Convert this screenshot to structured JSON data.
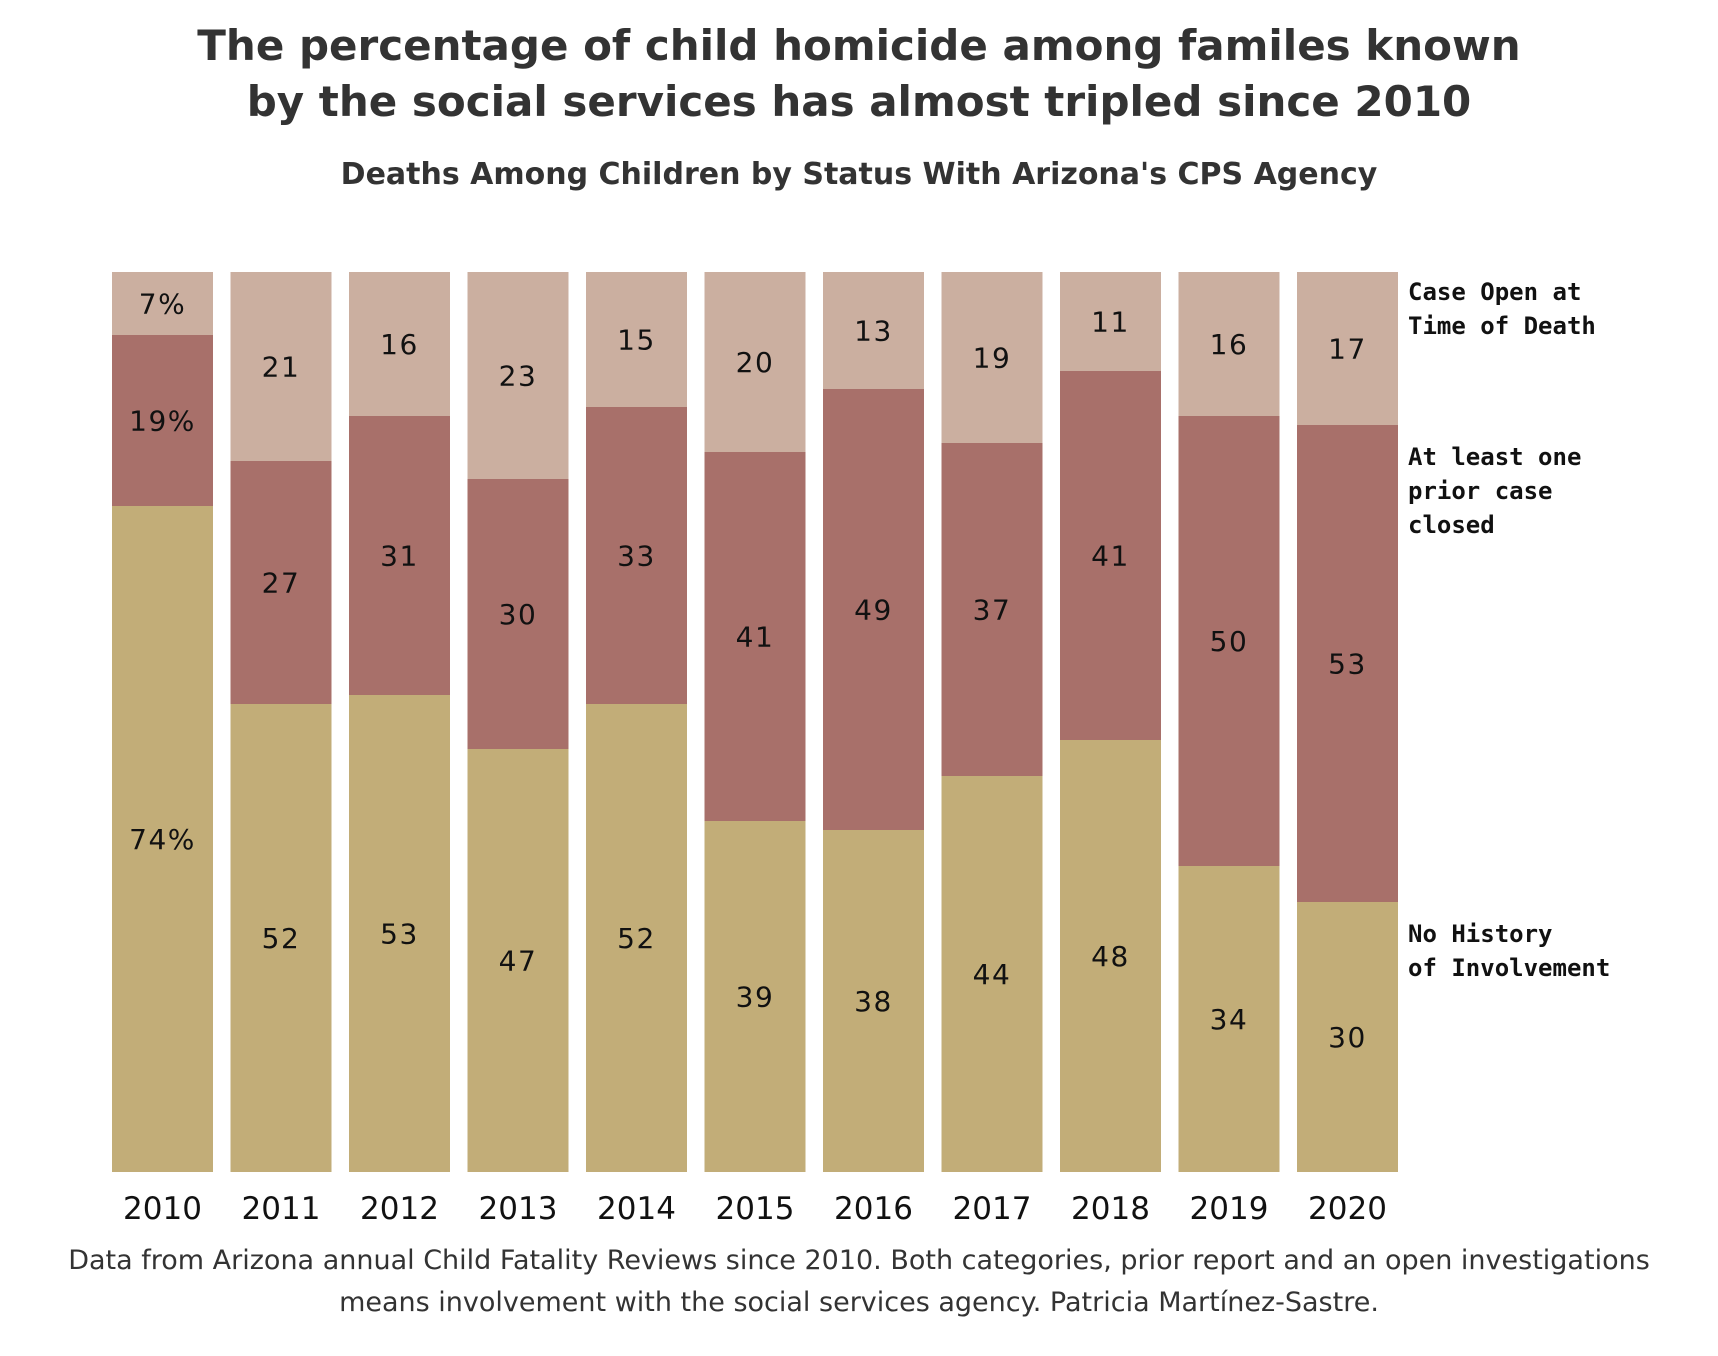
{
  "header": {
    "title_lines": [
      "The percentage of child homicide among familes known",
      "by the social services has almost tripled since 2010"
    ],
    "subtitle": "Deaths Among Children by Status With Arizona's CPS Agency"
  },
  "footer": {
    "source_lines": [
      "Data from Arizona annual Child Fatality Reviews since 2010. Both categories, prior report and an open investigations",
      "means involvement with the social services agency. Patricia Martínez-Sastre."
    ]
  },
  "chart_data": {
    "type": "bar",
    "stacked": true,
    "orientation": "vertical",
    "units": "percent",
    "title": "The percentage of child homicide among familes known by the social services has almost tripled since 2010",
    "subtitle": "Deaths Among Children by Status With Arizona's CPS Agency",
    "xlabel": "",
    "ylabel": "",
    "ylim": [
      0,
      100
    ],
    "grid": false,
    "legend_placement": "right, inline with last bar",
    "categories": [
      "2010",
      "2011",
      "2012",
      "2013",
      "2014",
      "2015",
      "2016",
      "2017",
      "2018",
      "2019",
      "2020"
    ],
    "series": [
      {
        "name": "No History of Involvement",
        "legend_lines": [
          "No History",
          "of Involvement"
        ],
        "color": "#c2ad78",
        "values": [
          74,
          52,
          53,
          47,
          52,
          39,
          38,
          44,
          48,
          34,
          30
        ],
        "labels": [
          "74%",
          "52",
          "53",
          "47",
          "52",
          "39",
          "38",
          "44",
          "48",
          "34",
          "30"
        ]
      },
      {
        "name": "At least one prior case closed",
        "legend_lines": [
          "At least one",
          "prior case",
          "closed"
        ],
        "color": "#a8706a",
        "values": [
          19,
          27,
          31,
          30,
          33,
          41,
          49,
          37,
          41,
          50,
          53
        ],
        "labels": [
          "19%",
          "27",
          "31",
          "30",
          "33",
          "41",
          "49",
          "37",
          "41",
          "50",
          "53"
        ]
      },
      {
        "name": "Case Open at Time of Death",
        "legend_lines": [
          "Case Open at",
          "Time of Death"
        ],
        "color": "#cbafa0",
        "values": [
          7,
          21,
          16,
          23,
          15,
          20,
          13,
          19,
          11,
          16,
          17
        ],
        "labels": [
          "7%",
          "21",
          "16",
          "23",
          "15",
          "20",
          "13",
          "19",
          "11",
          "16",
          "17"
        ]
      }
    ]
  }
}
